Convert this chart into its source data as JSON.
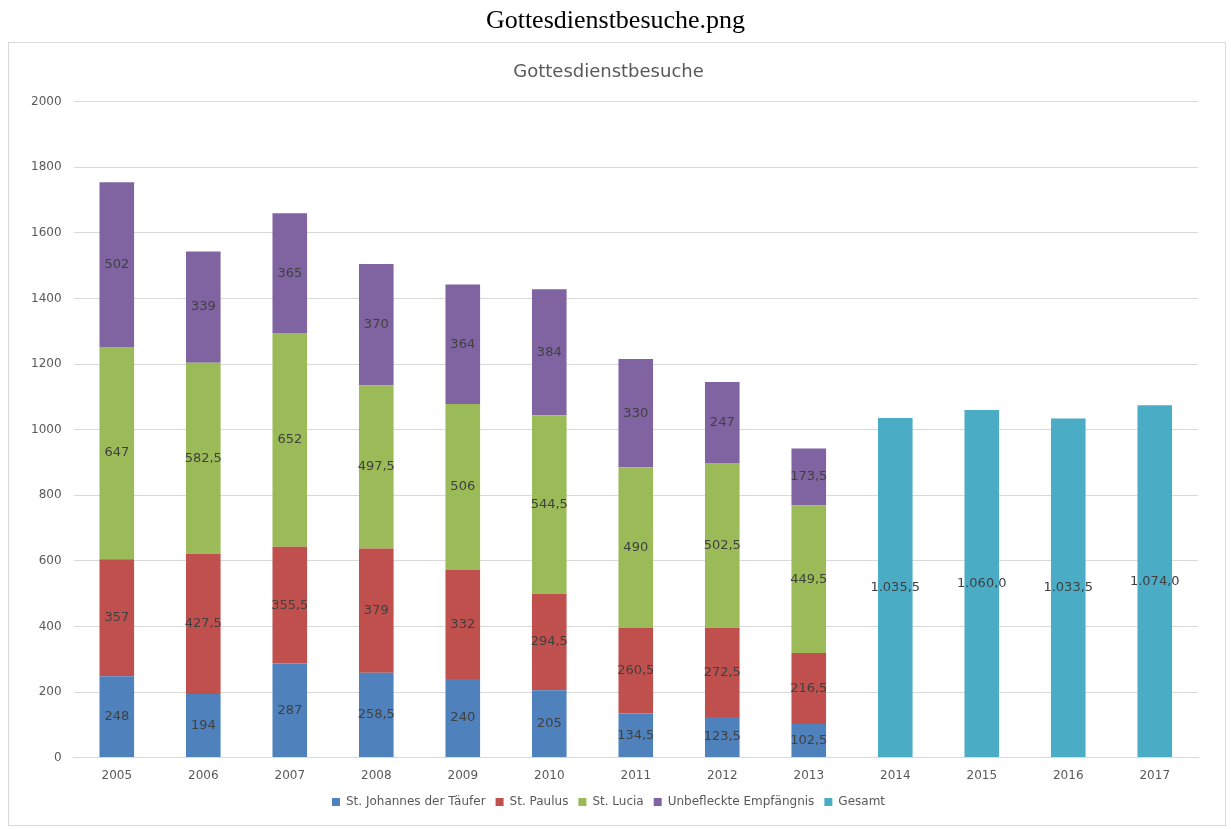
{
  "chart_data": {
    "type": "bar",
    "title": "Gottesdienstbesuche",
    "annotations": [
      "Gottesdienstbesuche.png"
    ],
    "categories": [
      "2005",
      "2006",
      "2007",
      "2008",
      "2009",
      "2010",
      "2011",
      "2012",
      "2013",
      "2014",
      "2015",
      "2016",
      "2017"
    ],
    "stacked": true,
    "ylim": [
      0,
      2000
    ],
    "yticks": [
      0,
      200,
      400,
      600,
      800,
      1000,
      1200,
      1400,
      1600,
      1800,
      2000
    ],
    "grid": "y",
    "legend": "bottom",
    "series": [
      {
        "name": "St. Johannes der Täufer",
        "color": "#4f81bd",
        "values": [
          248,
          194,
          287,
          258.5,
          240,
          205,
          134.5,
          123.5,
          102.5,
          null,
          null,
          null,
          null
        ],
        "value_labels": [
          "248",
          "194",
          "287",
          "258,5",
          "240",
          "205",
          "134,5",
          "123,5",
          "102,5",
          null,
          null,
          null,
          null
        ]
      },
      {
        "name": "St. Paulus",
        "color": "#c0504d",
        "values": [
          357,
          427.5,
          355.5,
          379,
          332,
          294.5,
          260.5,
          272.5,
          216.5,
          null,
          null,
          null,
          null
        ],
        "value_labels": [
          "357",
          "427,5",
          "355,5",
          "379",
          "332",
          "294,5",
          "260,5",
          "272,5",
          "216,5",
          null,
          null,
          null,
          null
        ]
      },
      {
        "name": "St. Lucia",
        "color": "#9bbb59",
        "values": [
          647,
          582.5,
          652,
          497.5,
          506,
          544.5,
          490,
          502.5,
          449.5,
          null,
          null,
          null,
          null
        ],
        "value_labels": [
          "647",
          "582,5",
          "652",
          "497,5",
          "506",
          "544,5",
          "490",
          "502,5",
          "449,5",
          null,
          null,
          null,
          null
        ]
      },
      {
        "name": "Unbefleckte Empfängnis",
        "color": "#8064a2",
        "values": [
          502,
          339,
          365,
          370,
          364,
          384,
          330,
          247,
          173.5,
          null,
          null,
          null,
          null
        ],
        "value_labels": [
          "502",
          "339",
          "365",
          "370",
          "364",
          "384",
          "330",
          "247",
          "173,5",
          null,
          null,
          null,
          null
        ]
      },
      {
        "name": "Gesamt",
        "color": "#4bacc6",
        "values": [
          null,
          null,
          null,
          null,
          null,
          null,
          null,
          null,
          null,
          1035.5,
          1060,
          1033.5,
          1074
        ],
        "value_labels": [
          null,
          null,
          null,
          null,
          null,
          null,
          null,
          null,
          null,
          "1.035,5",
          "1.060,0",
          "1.033,5",
          "1.074,0"
        ]
      }
    ]
  }
}
